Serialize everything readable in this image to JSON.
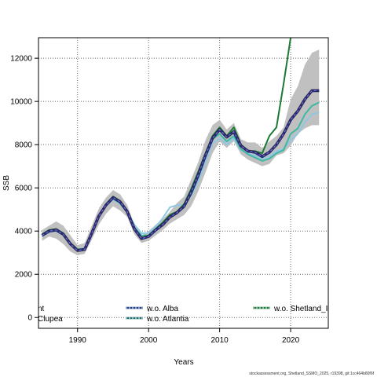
{
  "chart_data": {
    "type": "line",
    "xlabel": "Years",
    "ylabel": "SSB",
    "xlim": [
      1984.5,
      2025.3
    ],
    "ylim": [
      -500,
      12950
    ],
    "x_ticks": [
      1990,
      2000,
      2010,
      2020
    ],
    "y_ticks": [
      0,
      2000,
      4000,
      6000,
      8000,
      10000,
      12000
    ],
    "grid": true,
    "legend_position": "bottom, inside plot",
    "legend": [
      {
        "label": "nt",
        "color": "#1a1a1a",
        "style": "solid"
      },
      {
        "label": "Clupea",
        "color": "#2a7d5a",
        "style": "solid"
      },
      {
        "label": "w.o. Alba",
        "color": "#1f3c88",
        "style": "dashed"
      },
      {
        "label": "w.o. Atlantia",
        "color": "#1f6e6e",
        "style": "dashed"
      },
      {
        "label": "w.o. Shetland_I",
        "color": "#1a7a3a",
        "style": "dashed"
      }
    ],
    "colors": {
      "band": "#c0c0c0",
      "main": "#2d2a7a",
      "light_blue": "#8ec8e4",
      "teal": "#3fb8a4",
      "green": "#1b7a35"
    },
    "band": {
      "x": [
        1985,
        1986,
        1987,
        1988,
        1989,
        1990,
        1991,
        1992,
        1993,
        1994,
        1995,
        1996,
        1997,
        1998,
        1999,
        2000,
        2001,
        2002,
        2003,
        2004,
        2005,
        2006,
        2007,
        2008,
        2009,
        2010,
        2011,
        2012,
        2013,
        2014,
        2015,
        2016,
        2017,
        2018,
        2019,
        2020,
        2021,
        2022,
        2023,
        2024
      ],
      "lower": [
        3550,
        3750,
        3650,
        3400,
        3050,
        2880,
        2950,
        3600,
        4300,
        4800,
        5150,
        4950,
        4650,
        3850,
        3450,
        3550,
        3800,
        4050,
        4350,
        4550,
        4750,
        5150,
        5850,
        6700,
        7600,
        8150,
        7850,
        8150,
        7550,
        7300,
        7150,
        7000,
        7100,
        7500,
        7600,
        7950,
        8500,
        8750,
        8900,
        8900
      ],
      "upper": [
        4050,
        4250,
        4450,
        4250,
        3800,
        3350,
        3450,
        4250,
        5050,
        5550,
        5900,
        5700,
        5200,
        4300,
        3800,
        4000,
        4300,
        4550,
        4900,
        5300,
        5600,
        6400,
        7200,
        8200,
        8900,
        9150,
        8700,
        9000,
        8250,
        8100,
        8100,
        7850,
        8150,
        8400,
        8800,
        10100,
        10700,
        11700,
        12250,
        12400
      ]
    },
    "series": [
      {
        "key": "main",
        "color": "#2d2a7a",
        "width": 3,
        "x": [
          1985,
          1986,
          1987,
          1988,
          1989,
          1990,
          1991,
          1992,
          1993,
          1994,
          1995,
          1996,
          1997,
          1998,
          1999,
          2000,
          2001,
          2002,
          2003,
          2004,
          2005,
          2006,
          2007,
          2008,
          2009,
          2010,
          2011,
          2012,
          2013,
          2014,
          2015,
          2016,
          2017,
          2018,
          2019,
          2020,
          2021,
          2022,
          2023,
          2024
        ],
        "values": [
          3800,
          4000,
          4050,
          3850,
          3400,
          3100,
          3150,
          3900,
          4700,
          5200,
          5550,
          5350,
          4900,
          4100,
          3650,
          3750,
          4050,
          4300,
          4650,
          4850,
          5150,
          5800,
          6600,
          7500,
          8300,
          8700,
          8350,
          8600,
          7950,
          7700,
          7650,
          7450,
          7650,
          8000,
          8500,
          9150,
          9550,
          10100,
          10500,
          10500
        ]
      },
      {
        "key": "light_blue",
        "color": "#8ec8e4",
        "width": 2,
        "x": [
          1985,
          1986,
          1987,
          1988,
          1989,
          1990,
          1991,
          1992,
          1993,
          1994,
          1995,
          1996,
          1997,
          1998,
          1999,
          2000,
          2001,
          2002,
          2003,
          2004,
          2005,
          2006,
          2007,
          2008,
          2009,
          2010,
          2011,
          2012,
          2013,
          2014,
          2015,
          2016,
          2017,
          2018,
          2019,
          2020,
          2021,
          2022,
          2023,
          2024
        ],
        "values": [
          3750,
          3950,
          4000,
          3800,
          3400,
          3150,
          3200,
          3900,
          4650,
          5150,
          5450,
          5250,
          4900,
          4300,
          3900,
          3900,
          4200,
          4600,
          5100,
          5200,
          5200,
          5650,
          6300,
          7200,
          8050,
          8300,
          8000,
          8300,
          7750,
          7600,
          7500,
          7350,
          7450,
          7700,
          7800,
          8200,
          8500,
          9050,
          9400,
          9500
        ]
      },
      {
        "key": "teal",
        "color": "#3fb8a4",
        "width": 2,
        "x": [
          1985,
          1986,
          1987,
          1988,
          1989,
          1990,
          1991,
          1992,
          1993,
          1994,
          1995,
          1996,
          1997,
          1998,
          1999,
          2000,
          2001,
          2002,
          2003,
          2004,
          2005,
          2006,
          2007,
          2008,
          2009,
          2010,
          2011,
          2012,
          2013,
          2014,
          2015,
          2016,
          2017,
          2018,
          2019,
          2020,
          2021,
          2022,
          2023,
          2024
        ],
        "values": [
          3850,
          4050,
          4050,
          3850,
          3450,
          3150,
          3200,
          3950,
          4700,
          5200,
          5500,
          5300,
          4900,
          4150,
          3800,
          3800,
          4100,
          4400,
          4700,
          4850,
          5100,
          5700,
          6500,
          7400,
          8250,
          8500,
          8150,
          8400,
          7800,
          7550,
          7400,
          7250,
          7350,
          7600,
          7750,
          8500,
          8750,
          9400,
          9800,
          9950
        ]
      },
      {
        "key": "green",
        "color": "#1b7a35",
        "width": 2,
        "x": [
          1985,
          1986,
          1987,
          1988,
          1989,
          1990,
          1991,
          1992,
          1993,
          1994,
          1995,
          1996,
          1997,
          1998,
          1999,
          2000,
          2001,
          2002,
          2003,
          2004,
          2005,
          2006,
          2007,
          2008,
          2009,
          2010,
          2011,
          2012,
          2013,
          2014,
          2015,
          2016,
          2017,
          2018,
          2019,
          2020
        ],
        "values": [
          3850,
          4050,
          4100,
          3900,
          3450,
          3150,
          3150,
          3900,
          4700,
          5250,
          5600,
          5400,
          4950,
          4150,
          3700,
          3800,
          4100,
          4400,
          4750,
          4900,
          5250,
          5950,
          6750,
          7600,
          8400,
          8800,
          8400,
          8800,
          8000,
          7700,
          7700,
          7600,
          8400,
          8800,
          10800,
          12950
        ]
      }
    ]
  },
  "footer": "stockassessment.org, Shetland_SSMO_2025, r19398, git:1cc464b80f6f"
}
